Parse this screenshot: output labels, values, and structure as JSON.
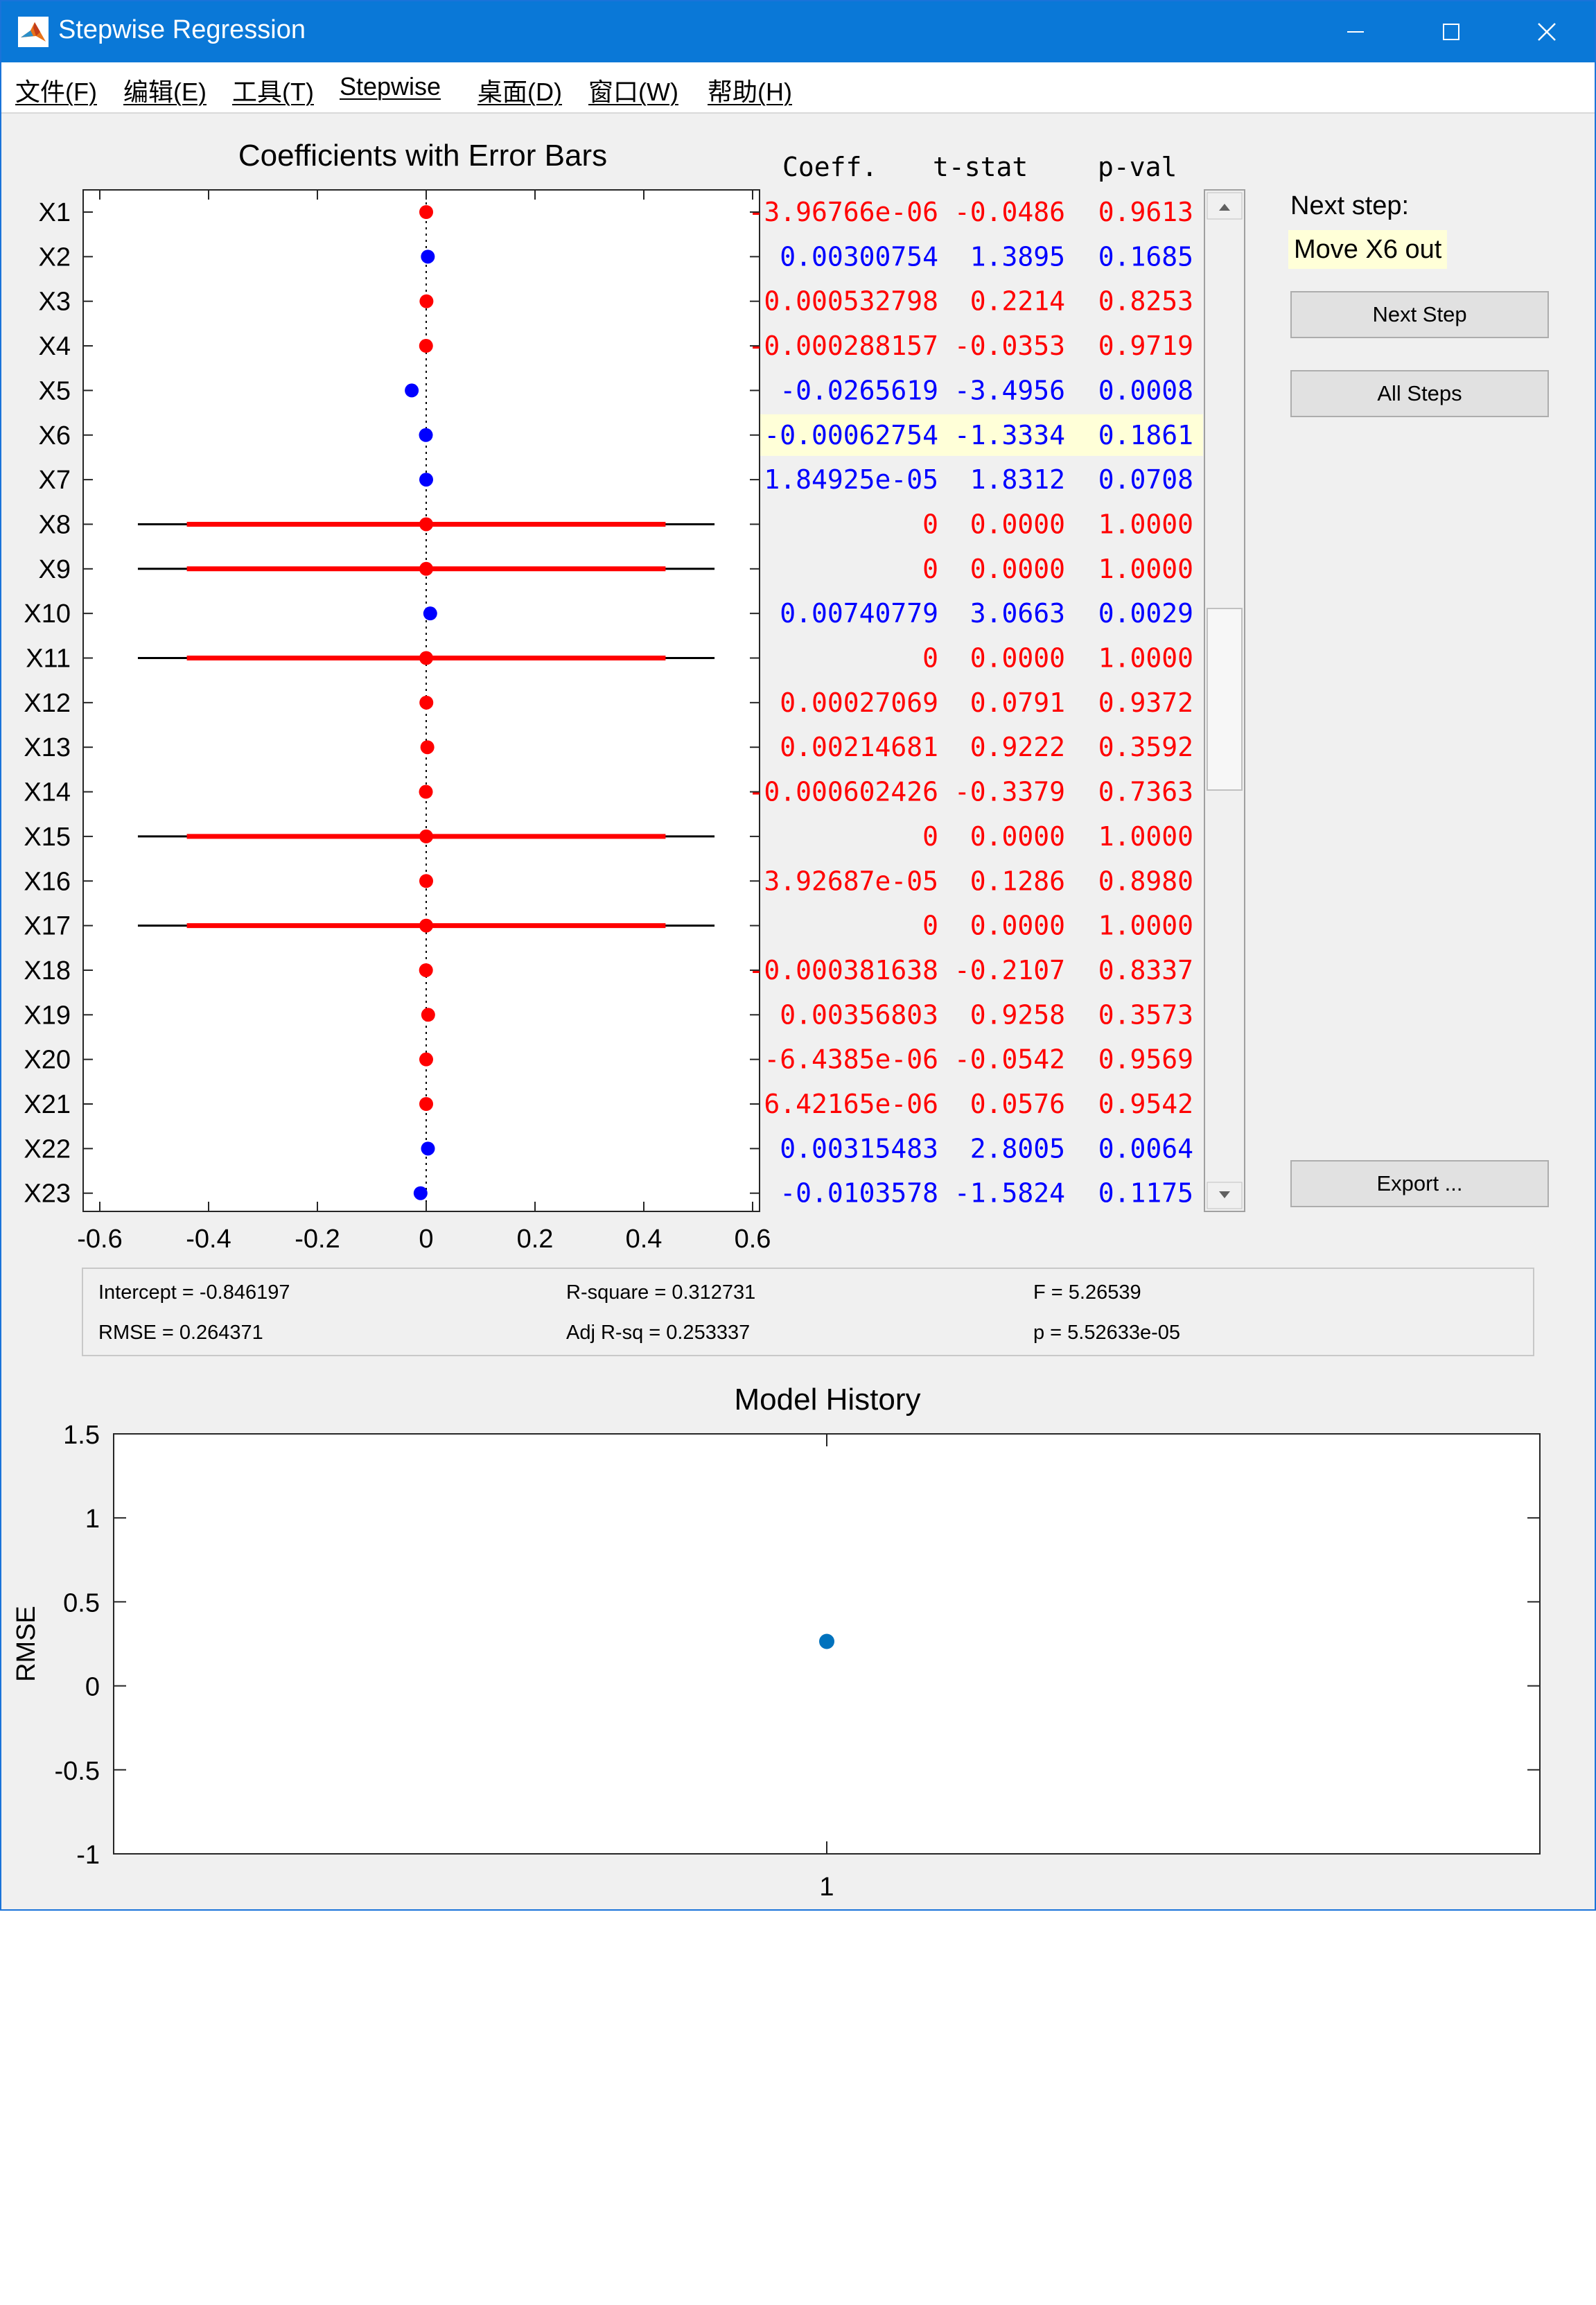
{
  "window": {
    "title": "Stepwise Regression"
  },
  "menu": [
    "文件(F)",
    "编辑(E)",
    "工具(T)",
    "Stepwise",
    "桌面(D)",
    "窗口(W)",
    "帮助(H)"
  ],
  "coef_panel": {
    "title": "Coefficients with Error Bars",
    "headers": {
      "coeff": "Coeff.",
      "tstat": "t-stat",
      "pval": "p-val"
    },
    "highlighted_term": "X6",
    "xlim": [
      -0.6,
      0.6
    ],
    "xticks": [
      "-0.6",
      "-0.4",
      "-0.2",
      "0",
      "0.2",
      "0.4",
      "0.6"
    ],
    "colors": {
      "in_model": "#0000ff",
      "out_model": "#ff0000",
      "highlight": "#ffffd8"
    },
    "rows": [
      {
        "term": "X1",
        "coef": "-3.96766e-06",
        "tstat": "-0.0486",
        "pval": "0.9613",
        "est": 0,
        "ci95": null,
        "ci90": null,
        "in_model": false
      },
      {
        "term": "X2",
        "coef": "0.00300754",
        "tstat": "1.3895",
        "pval": "0.1685",
        "est": 0.003,
        "ci95": null,
        "ci90": null,
        "in_model": true
      },
      {
        "term": "X3",
        "coef": "0.000532798",
        "tstat": "0.2214",
        "pval": "0.8253",
        "est": 0.0005,
        "ci95": null,
        "ci90": null,
        "in_model": false
      },
      {
        "term": "X4",
        "coef": "-0.000288157",
        "tstat": "-0.0353",
        "pval": "0.9719",
        "est": -0.0003,
        "ci95": null,
        "ci90": null,
        "in_model": false
      },
      {
        "term": "X5",
        "coef": "-0.0265619",
        "tstat": "-3.4956",
        "pval": "0.0008",
        "est": -0.0266,
        "ci95": null,
        "ci90": null,
        "in_model": true
      },
      {
        "term": "X6",
        "coef": "-0.00062754",
        "tstat": "-1.3334",
        "pval": "0.1861",
        "est": -0.0006,
        "ci95": null,
        "ci90": null,
        "in_model": true
      },
      {
        "term": "X7",
        "coef": "1.84925e-05",
        "tstat": "1.8312",
        "pval": "0.0708",
        "est": 0,
        "ci95": null,
        "ci90": null,
        "in_model": true
      },
      {
        "term": "X8",
        "coef": "0",
        "tstat": "0.0000",
        "pval": "1.0000",
        "est": 0,
        "ci95": [
          -0.53,
          0.53
        ],
        "ci90": [
          -0.44,
          0.44
        ],
        "in_model": false
      },
      {
        "term": "X9",
        "coef": "0",
        "tstat": "0.0000",
        "pval": "1.0000",
        "est": 0,
        "ci95": [
          -0.53,
          0.53
        ],
        "ci90": [
          -0.44,
          0.44
        ],
        "in_model": false
      },
      {
        "term": "X10",
        "coef": "0.00740779",
        "tstat": "3.0663",
        "pval": "0.0029",
        "est": 0.0074,
        "ci95": null,
        "ci90": null,
        "in_model": true
      },
      {
        "term": "X11",
        "coef": "0",
        "tstat": "0.0000",
        "pval": "1.0000",
        "est": 0,
        "ci95": [
          -0.53,
          0.53
        ],
        "ci90": [
          -0.44,
          0.44
        ],
        "in_model": false
      },
      {
        "term": "X12",
        "coef": "0.00027069",
        "tstat": "0.0791",
        "pval": "0.9372",
        "est": 0.0003,
        "ci95": null,
        "ci90": null,
        "in_model": false
      },
      {
        "term": "X13",
        "coef": "0.00214681",
        "tstat": "0.9222",
        "pval": "0.3592",
        "est": 0.0021,
        "ci95": null,
        "ci90": null,
        "in_model": false
      },
      {
        "term": "X14",
        "coef": "-0.000602426",
        "tstat": "-0.3379",
        "pval": "0.7363",
        "est": -0.0006,
        "ci95": null,
        "ci90": null,
        "in_model": false
      },
      {
        "term": "X15",
        "coef": "0",
        "tstat": "0.0000",
        "pval": "1.0000",
        "est": 0,
        "ci95": [
          -0.53,
          0.53
        ],
        "ci90": [
          -0.44,
          0.44
        ],
        "in_model": false
      },
      {
        "term": "X16",
        "coef": "3.92687e-05",
        "tstat": "0.1286",
        "pval": "0.8980",
        "est": 0,
        "ci95": null,
        "ci90": null,
        "in_model": false
      },
      {
        "term": "X17",
        "coef": "0",
        "tstat": "0.0000",
        "pval": "1.0000",
        "est": 0,
        "ci95": [
          -0.53,
          0.53
        ],
        "ci90": [
          -0.44,
          0.44
        ],
        "in_model": false
      },
      {
        "term": "X18",
        "coef": "-0.000381638",
        "tstat": "-0.2107",
        "pval": "0.8337",
        "est": -0.0004,
        "ci95": null,
        "ci90": null,
        "in_model": false
      },
      {
        "term": "X19",
        "coef": "0.00356803",
        "tstat": "0.9258",
        "pval": "0.3573",
        "est": 0.0036,
        "ci95": null,
        "ci90": null,
        "in_model": false
      },
      {
        "term": "X20",
        "coef": "-6.4385e-06",
        "tstat": "-0.0542",
        "pval": "0.9569",
        "est": 0,
        "ci95": null,
        "ci90": null,
        "in_model": false
      },
      {
        "term": "X21",
        "coef": "6.42165e-06",
        "tstat": "0.0576",
        "pval": "0.9542",
        "est": 0,
        "ci95": null,
        "ci90": null,
        "in_model": false
      },
      {
        "term": "X22",
        "coef": "0.00315483",
        "tstat": "2.8005",
        "pval": "0.0064",
        "est": 0.0032,
        "ci95": null,
        "ci90": null,
        "in_model": true
      },
      {
        "term": "X23",
        "coef": "-0.0103578",
        "tstat": "-1.5824",
        "pval": "0.1175",
        "est": -0.0104,
        "ci95": null,
        "ci90": null,
        "in_model": true
      }
    ]
  },
  "next_step": {
    "label": "Next step:",
    "value": "Move X6 out"
  },
  "buttons": {
    "next_step": "Next Step",
    "all_steps": "All Steps",
    "export": "Export ..."
  },
  "stats": {
    "intercept": "Intercept = -0.846197",
    "rsq": "R-square = 0.312731",
    "f": "F = 5.26539",
    "rmse": "RMSE = 0.264371",
    "adjrsq": "Adj R-sq = 0.253337",
    "p": "p = 5.52633e-05"
  },
  "chart_data": {
    "type": "scatter",
    "title": "Model History",
    "xlabel": "",
    "ylabel": "RMSE",
    "x": [
      1
    ],
    "y": [
      0.264371
    ],
    "xticks": [
      "1"
    ],
    "yticks": [
      "1.5",
      "1",
      "0.5",
      "0",
      "-0.5",
      "-1"
    ],
    "ylim": [
      -1,
      1.5
    ],
    "color": "#0072bd"
  }
}
